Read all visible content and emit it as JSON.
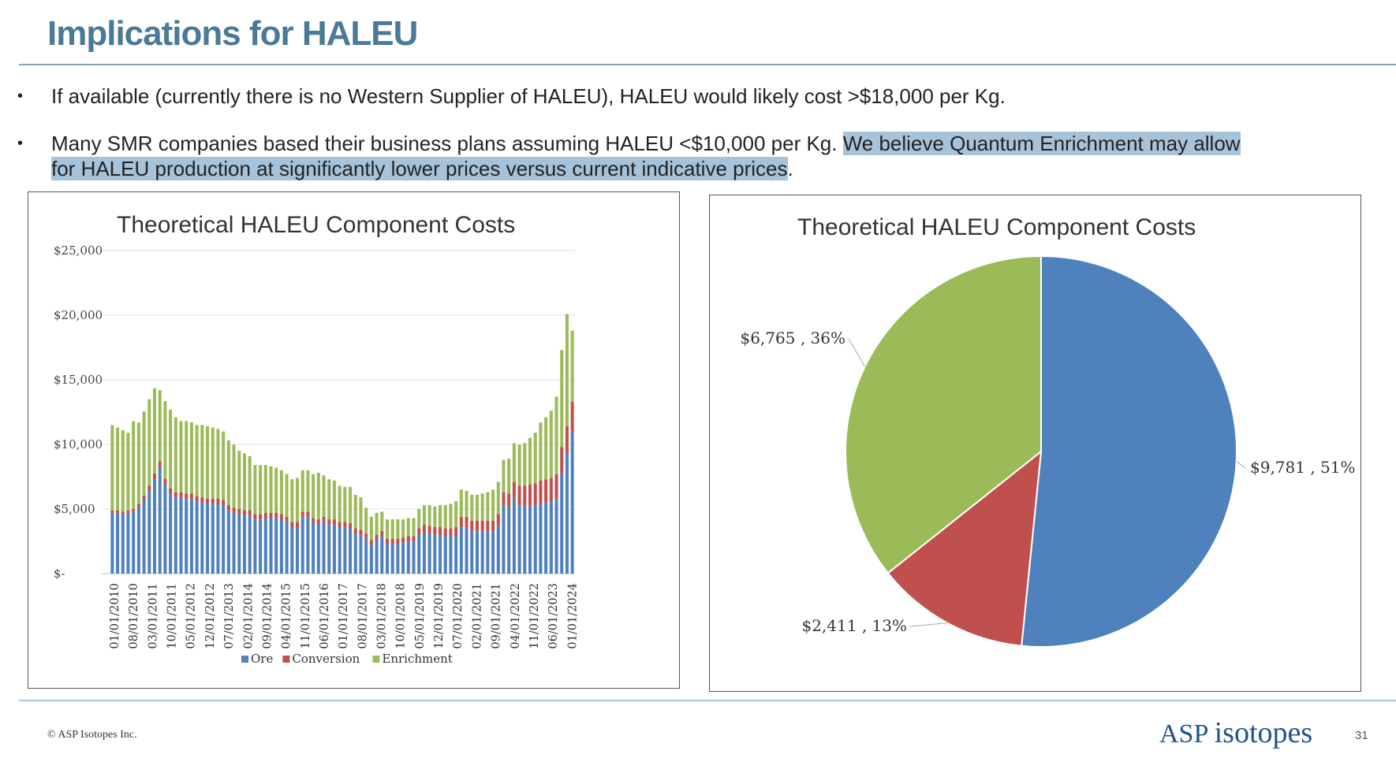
{
  "slide": {
    "title": "Implications for HALEU",
    "bullets": [
      {
        "text": "If available (currently there is no Western Supplier of HALEU), HALEU would likely cost >$18,000 per Kg."
      },
      {
        "line1_plain": "Many SMR companies based their business plans assuming HALEU <$10,000 per Kg.  ",
        "line1_highlight": "We believe Quantum Enrichment may allow",
        "line2_highlight": "for HALEU production at significantly lower prices versus current indicative prices",
        "line2_plain": "."
      }
    ],
    "footer": {
      "copyright": "© ASP Isotopes Inc.",
      "logo_part1": "ASP ",
      "logo_part2": "isotopes",
      "page_number": "31"
    }
  },
  "chart_data": [
    {
      "type": "bar",
      "stacked": true,
      "title": "Theoretical HALEU Component Costs",
      "xlabel": "",
      "ylabel": "",
      "ylim": [
        0,
        25000
      ],
      "y_ticks": [
        "$-",
        "$5,000",
        "$10,000",
        "$15,000",
        "$20,000",
        "$25,000"
      ],
      "x_tick_labels": [
        "01/01/2010",
        "08/01/2010",
        "03/01/2011",
        "10/01/2011",
        "05/01/2012",
        "12/01/2012",
        "07/01/2013",
        "02/01/2014",
        "09/01/2014",
        "04/01/2015",
        "11/01/2015",
        "06/01/2016",
        "01/01/2017",
        "08/01/2017",
        "03/01/2018",
        "10/01/2018",
        "05/01/2019",
        "12/01/2019",
        "07/01/2020",
        "02/01/2021",
        "09/01/2021",
        "04/01/2022",
        "11/01/2022",
        "06/01/2023",
        "01/01/2024"
      ],
      "grid": true,
      "legend_position": "bottom",
      "colors": {
        "Ore": "#4f81bd",
        "Conversion": "#c0504d",
        "Enrichment": "#9bbb59"
      },
      "series": [
        {
          "name": "Ore",
          "values": [
            4700,
            4700,
            4600,
            4700,
            4800,
            5100,
            5700,
            6400,
            7300,
            8200,
            6900,
            6200,
            5900,
            5900,
            5800,
            5800,
            5600,
            5500,
            5400,
            5400,
            5400,
            5300,
            4900,
            4700,
            4600,
            4500,
            4500,
            4200,
            4200,
            4300,
            4300,
            4300,
            4200,
            4000,
            3600,
            3600,
            4400,
            4400,
            3900,
            3800,
            4000,
            3800,
            3800,
            3600,
            3600,
            3500,
            3100,
            3000,
            2700,
            2200,
            2600,
            2900,
            2300,
            2300,
            2300,
            2400,
            2500,
            2500,
            3000,
            3200,
            3100,
            3000,
            3000,
            2900,
            2900,
            2900,
            3600,
            3600,
            3300,
            3300,
            3300,
            3300,
            3300,
            3700,
            5300,
            5100,
            5800,
            5300,
            5200,
            5200,
            5300,
            5400,
            5500,
            5600,
            5800,
            7800,
            9300,
            11000
          ]
        },
        {
          "name": "Conversion",
          "values": [
            200,
            200,
            200,
            200,
            200,
            300,
            350,
            400,
            450,
            500,
            450,
            400,
            400,
            400,
            400,
            400,
            400,
            400,
            400,
            400,
            400,
            400,
            400,
            400,
            400,
            400,
            400,
            400,
            400,
            400,
            400,
            400,
            400,
            400,
            400,
            400,
            400,
            400,
            400,
            400,
            400,
            400,
            400,
            400,
            400,
            400,
            400,
            400,
            400,
            400,
            400,
            400,
            400,
            400,
            400,
            400,
            400,
            400,
            500,
            600,
            600,
            600,
            600,
            600,
            600,
            700,
            800,
            800,
            800,
            800,
            800,
            800,
            800,
            900,
            1000,
            1100,
            1300,
            1500,
            1600,
            1700,
            1700,
            1800,
            1800,
            1800,
            1900,
            2000,
            2100,
            2300
          ]
        },
        {
          "name": "Enrichment",
          "values": [
            6600,
            6400,
            6300,
            6000,
            6800,
            6300,
            6500,
            6700,
            6600,
            5500,
            6000,
            6100,
            5800,
            5500,
            5600,
            5500,
            5500,
            5600,
            5600,
            5500,
            5400,
            5300,
            5000,
            4900,
            4500,
            4400,
            4200,
            3800,
            3800,
            3700,
            3600,
            3500,
            3400,
            3300,
            3300,
            3400,
            3200,
            3200,
            3400,
            3600,
            3200,
            3100,
            3000,
            2800,
            2700,
            2800,
            2600,
            2500,
            2000,
            1800,
            1700,
            1500,
            1500,
            1500,
            1500,
            1400,
            1400,
            1400,
            1500,
            1500,
            1600,
            1600,
            1700,
            1800,
            1900,
            2000,
            2100,
            2000,
            2000,
            2000,
            2100,
            2200,
            2400,
            2500,
            2500,
            2700,
            3000,
            3200,
            3300,
            3600,
            3900,
            4500,
            4800,
            5200,
            6000,
            7500,
            8700,
            5500
          ]
        }
      ]
    },
    {
      "type": "pie",
      "title": "Theoretical HALEU Component Costs",
      "slices": [
        {
          "name": "Ore",
          "value": 9781,
          "label": "$9,781 , 51%",
          "color": "#4f81bd"
        },
        {
          "name": "Conversion",
          "value": 2411,
          "label": "$2,411 , 13%",
          "color": "#c0504d"
        },
        {
          "name": "Enrichment",
          "value": 6765,
          "label": "$6,765 , 36%",
          "color": "#9bbb59"
        }
      ]
    }
  ]
}
